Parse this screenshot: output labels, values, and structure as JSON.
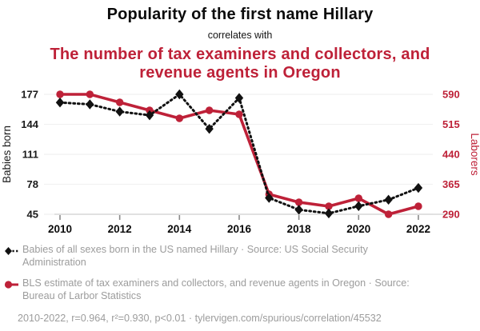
{
  "header": {
    "title": "Popularity of the first name Hillary",
    "connector": "correlates with",
    "subtitle": "The number of tax examiners and collectors, and revenue agents in Oregon"
  },
  "chart_data": {
    "type": "line",
    "x": [
      2010,
      2011,
      2012,
      2013,
      2014,
      2015,
      2016,
      2017,
      2018,
      2019,
      2020,
      2021,
      2022
    ],
    "x_ticks": [
      2010,
      2012,
      2014,
      2016,
      2018,
      2020,
      2022
    ],
    "series": [
      {
        "name": "Babies of all sexes born in the US named Hillary",
        "axis": "left",
        "color": "#111111",
        "line": "dotted",
        "marker": "diamond",
        "values": [
          168,
          166,
          158,
          154,
          177,
          139,
          173,
          63,
          50,
          46,
          54,
          61,
          74
        ]
      },
      {
        "name": "BLS estimate of tax examiners and collectors, and revenue agents in Oregon",
        "axis": "right",
        "color": "#be2138",
        "line": "solid",
        "marker": "circle",
        "values": [
          590,
          590,
          570,
          550,
          530,
          550,
          540,
          340,
          320,
          310,
          330,
          290,
          310
        ]
      }
    ],
    "left_axis": {
      "label": "Babies born",
      "ticks": [
        177,
        144,
        111,
        78,
        45
      ],
      "min": 45,
      "max": 177,
      "color": "#1a1a1a"
    },
    "right_axis": {
      "label": "Laborers",
      "ticks": [
        590,
        515,
        440,
        365,
        290
      ],
      "min": 290,
      "max": 590,
      "color": "#be2138"
    },
    "grid": true,
    "legend_position": "bottom"
  },
  "legend": {
    "items": [
      {
        "label": "Babies of all sexes born in the US named Hillary · Source: US Social Security Administration",
        "icon": "black-diamond-dashed-line",
        "color": "#111111"
      },
      {
        "label": "BLS estimate of tax examiners and collectors, and revenue agents in Oregon · Source: Bureau of Larbor Statistics",
        "icon": "red-circle-solid-line",
        "color": "#be2138"
      }
    ],
    "footnote": "2010-2022, r=0.964, r²=0.930, p<0.01 · tylervigen.com/spurious/correlation/45532"
  },
  "colors": {
    "accent": "#be2138",
    "text": "#0b0b0b",
    "muted": "#9c9c9c",
    "grid": "#f1f1f1",
    "axis_line": "#d8d8d8",
    "tick": "#8a8a8a"
  }
}
